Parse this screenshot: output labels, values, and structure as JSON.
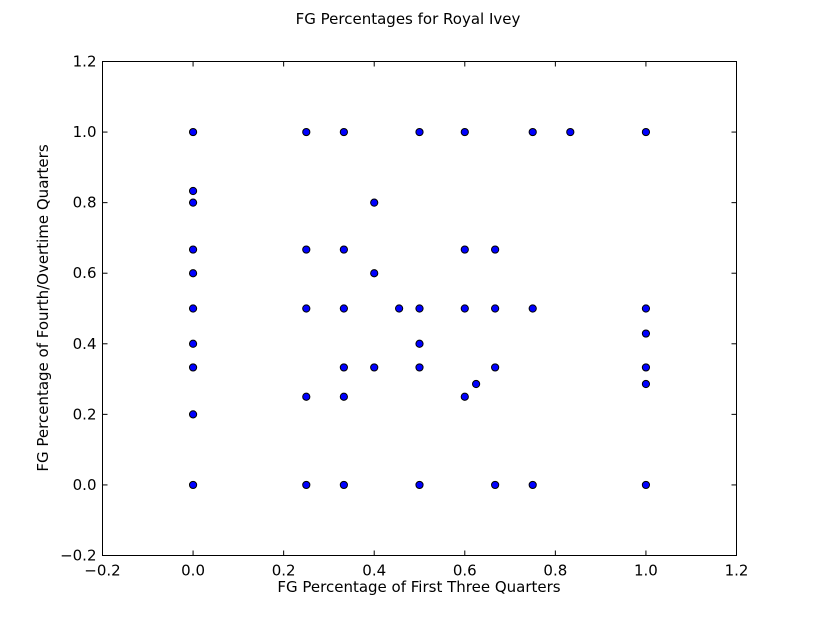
{
  "chart_data": {
    "type": "scatter",
    "title": "FG Percentages for Royal Ivey",
    "xlabel": "FG Percentage of First Three Quarters",
    "ylabel": "FG Percentage of Fourth/Overtime Quarters",
    "xlim": [
      -0.2,
      1.2
    ],
    "ylim": [
      -0.2,
      1.2
    ],
    "xticks": [
      -0.2,
      0.0,
      0.2,
      0.4,
      0.6,
      0.8,
      1.0,
      1.2
    ],
    "yticks": [
      -0.2,
      0.0,
      0.2,
      0.4,
      0.6,
      0.8,
      1.0,
      1.2
    ],
    "xtick_labels": [
      "−0.2",
      "0.0",
      "0.2",
      "0.4",
      "0.6",
      "0.8",
      "1.0",
      "1.2"
    ],
    "ytick_labels": [
      "−0.2",
      "0.0",
      "0.2",
      "0.4",
      "0.6",
      "0.8",
      "1.0",
      "1.2"
    ],
    "grid": false,
    "marker_color": "#0000ff",
    "points": [
      [
        0.0,
        1.0
      ],
      [
        0.0,
        0.833
      ],
      [
        0.0,
        0.8
      ],
      [
        0.0,
        0.667
      ],
      [
        0.0,
        0.6
      ],
      [
        0.0,
        0.5
      ],
      [
        0.0,
        0.4
      ],
      [
        0.0,
        0.333
      ],
      [
        0.0,
        0.2
      ],
      [
        0.0,
        0.0
      ],
      [
        0.25,
        1.0
      ],
      [
        0.25,
        0.667
      ],
      [
        0.25,
        0.5
      ],
      [
        0.25,
        0.25
      ],
      [
        0.25,
        0.0
      ],
      [
        0.333,
        1.0
      ],
      [
        0.333,
        0.667
      ],
      [
        0.333,
        0.5
      ],
      [
        0.333,
        0.333
      ],
      [
        0.333,
        0.25
      ],
      [
        0.333,
        0.0
      ],
      [
        0.4,
        0.8
      ],
      [
        0.4,
        0.6
      ],
      [
        0.4,
        0.333
      ],
      [
        0.455,
        0.5
      ],
      [
        0.5,
        1.0
      ],
      [
        0.5,
        0.5
      ],
      [
        0.5,
        0.4
      ],
      [
        0.5,
        0.333
      ],
      [
        0.5,
        0.0
      ],
      [
        0.6,
        1.0
      ],
      [
        0.6,
        0.667
      ],
      [
        0.6,
        0.5
      ],
      [
        0.6,
        0.25
      ],
      [
        0.625,
        0.286
      ],
      [
        0.667,
        0.667
      ],
      [
        0.667,
        0.5
      ],
      [
        0.667,
        0.333
      ],
      [
        0.667,
        0.0
      ],
      [
        0.75,
        1.0
      ],
      [
        0.75,
        0.5
      ],
      [
        0.75,
        0.0
      ],
      [
        0.833,
        1.0
      ],
      [
        1.0,
        1.0
      ],
      [
        1.0,
        0.5
      ],
      [
        1.0,
        0.429
      ],
      [
        1.0,
        0.333
      ],
      [
        1.0,
        0.286
      ],
      [
        1.0,
        0.0
      ]
    ]
  }
}
